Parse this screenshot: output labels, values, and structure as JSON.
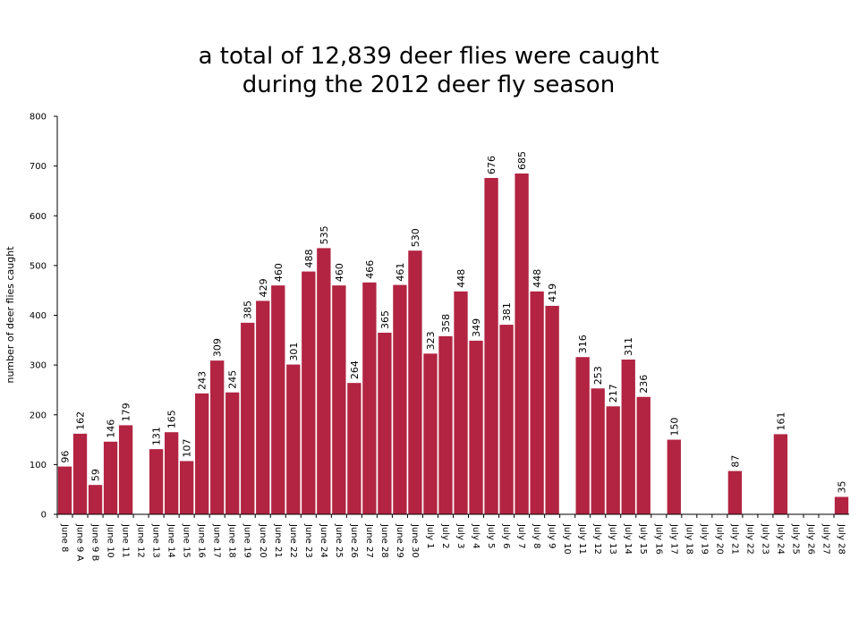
{
  "chart_data": {
    "type": "bar",
    "title_line1": "a total of 12,839 deer flies were caught",
    "title_line2": "during the 2012 deer fly season",
    "xlabel": "",
    "ylabel": "number of deer flies caught",
    "ylim": [
      0,
      800
    ],
    "yticks": [
      "0",
      "100",
      "200",
      "300",
      "400",
      "500",
      "600",
      "700",
      "800"
    ],
    "bar_color": "#b22442",
    "grid": false,
    "categories": [
      "June 8",
      "June 9 A",
      "June 9 B",
      "June 10",
      "June 11",
      "June 12",
      "June 13",
      "June 14",
      "June 15",
      "June 16",
      "June 17",
      "June 18",
      "June 19",
      "June 20",
      "June 21",
      "June 22",
      "June 23",
      "June 24",
      "June 25",
      "June 26",
      "June 27",
      "June 28",
      "June 29",
      "June 30",
      "July 1",
      "July 2",
      "July 3",
      "July 4",
      "July 5",
      "July 6",
      "July 7",
      "July 8",
      "July 9",
      "July 10",
      "July 11",
      "July 12",
      "July 13",
      "July 14",
      "July 15",
      "July 16",
      "July 17",
      "July 18",
      "July 19",
      "July 20",
      "July 21",
      "July 22",
      "July 23",
      "July 24",
      "July 25",
      "July 26",
      "July 27",
      "July 28"
    ],
    "values": [
      96,
      162,
      59,
      146,
      179,
      null,
      131,
      165,
      107,
      243,
      309,
      245,
      385,
      429,
      460,
      301,
      488,
      535,
      460,
      264,
      466,
      365,
      461,
      530,
      323,
      358,
      448,
      349,
      676,
      381,
      685,
      448,
      419,
      null,
      316,
      253,
      217,
      311,
      236,
      null,
      150,
      null,
      null,
      null,
      87,
      null,
      null,
      161,
      null,
      null,
      null,
      35
    ],
    "data_labels": [
      "96",
      "162",
      "59",
      "146",
      "179",
      "",
      "131",
      "165",
      "107",
      "243",
      "309",
      "245",
      "385",
      "429",
      "460",
      "301",
      "488",
      "535",
      "460",
      "264",
      "466",
      "365",
      "461",
      "530",
      "323",
      "358",
      "448",
      "349",
      "676",
      "381",
      "685",
      "448",
      "419",
      "",
      "316",
      "253",
      "217",
      "311",
      "236",
      "",
      "150",
      "",
      "",
      "",
      "87",
      "",
      "",
      "161",
      "",
      "",
      "",
      "35"
    ]
  }
}
